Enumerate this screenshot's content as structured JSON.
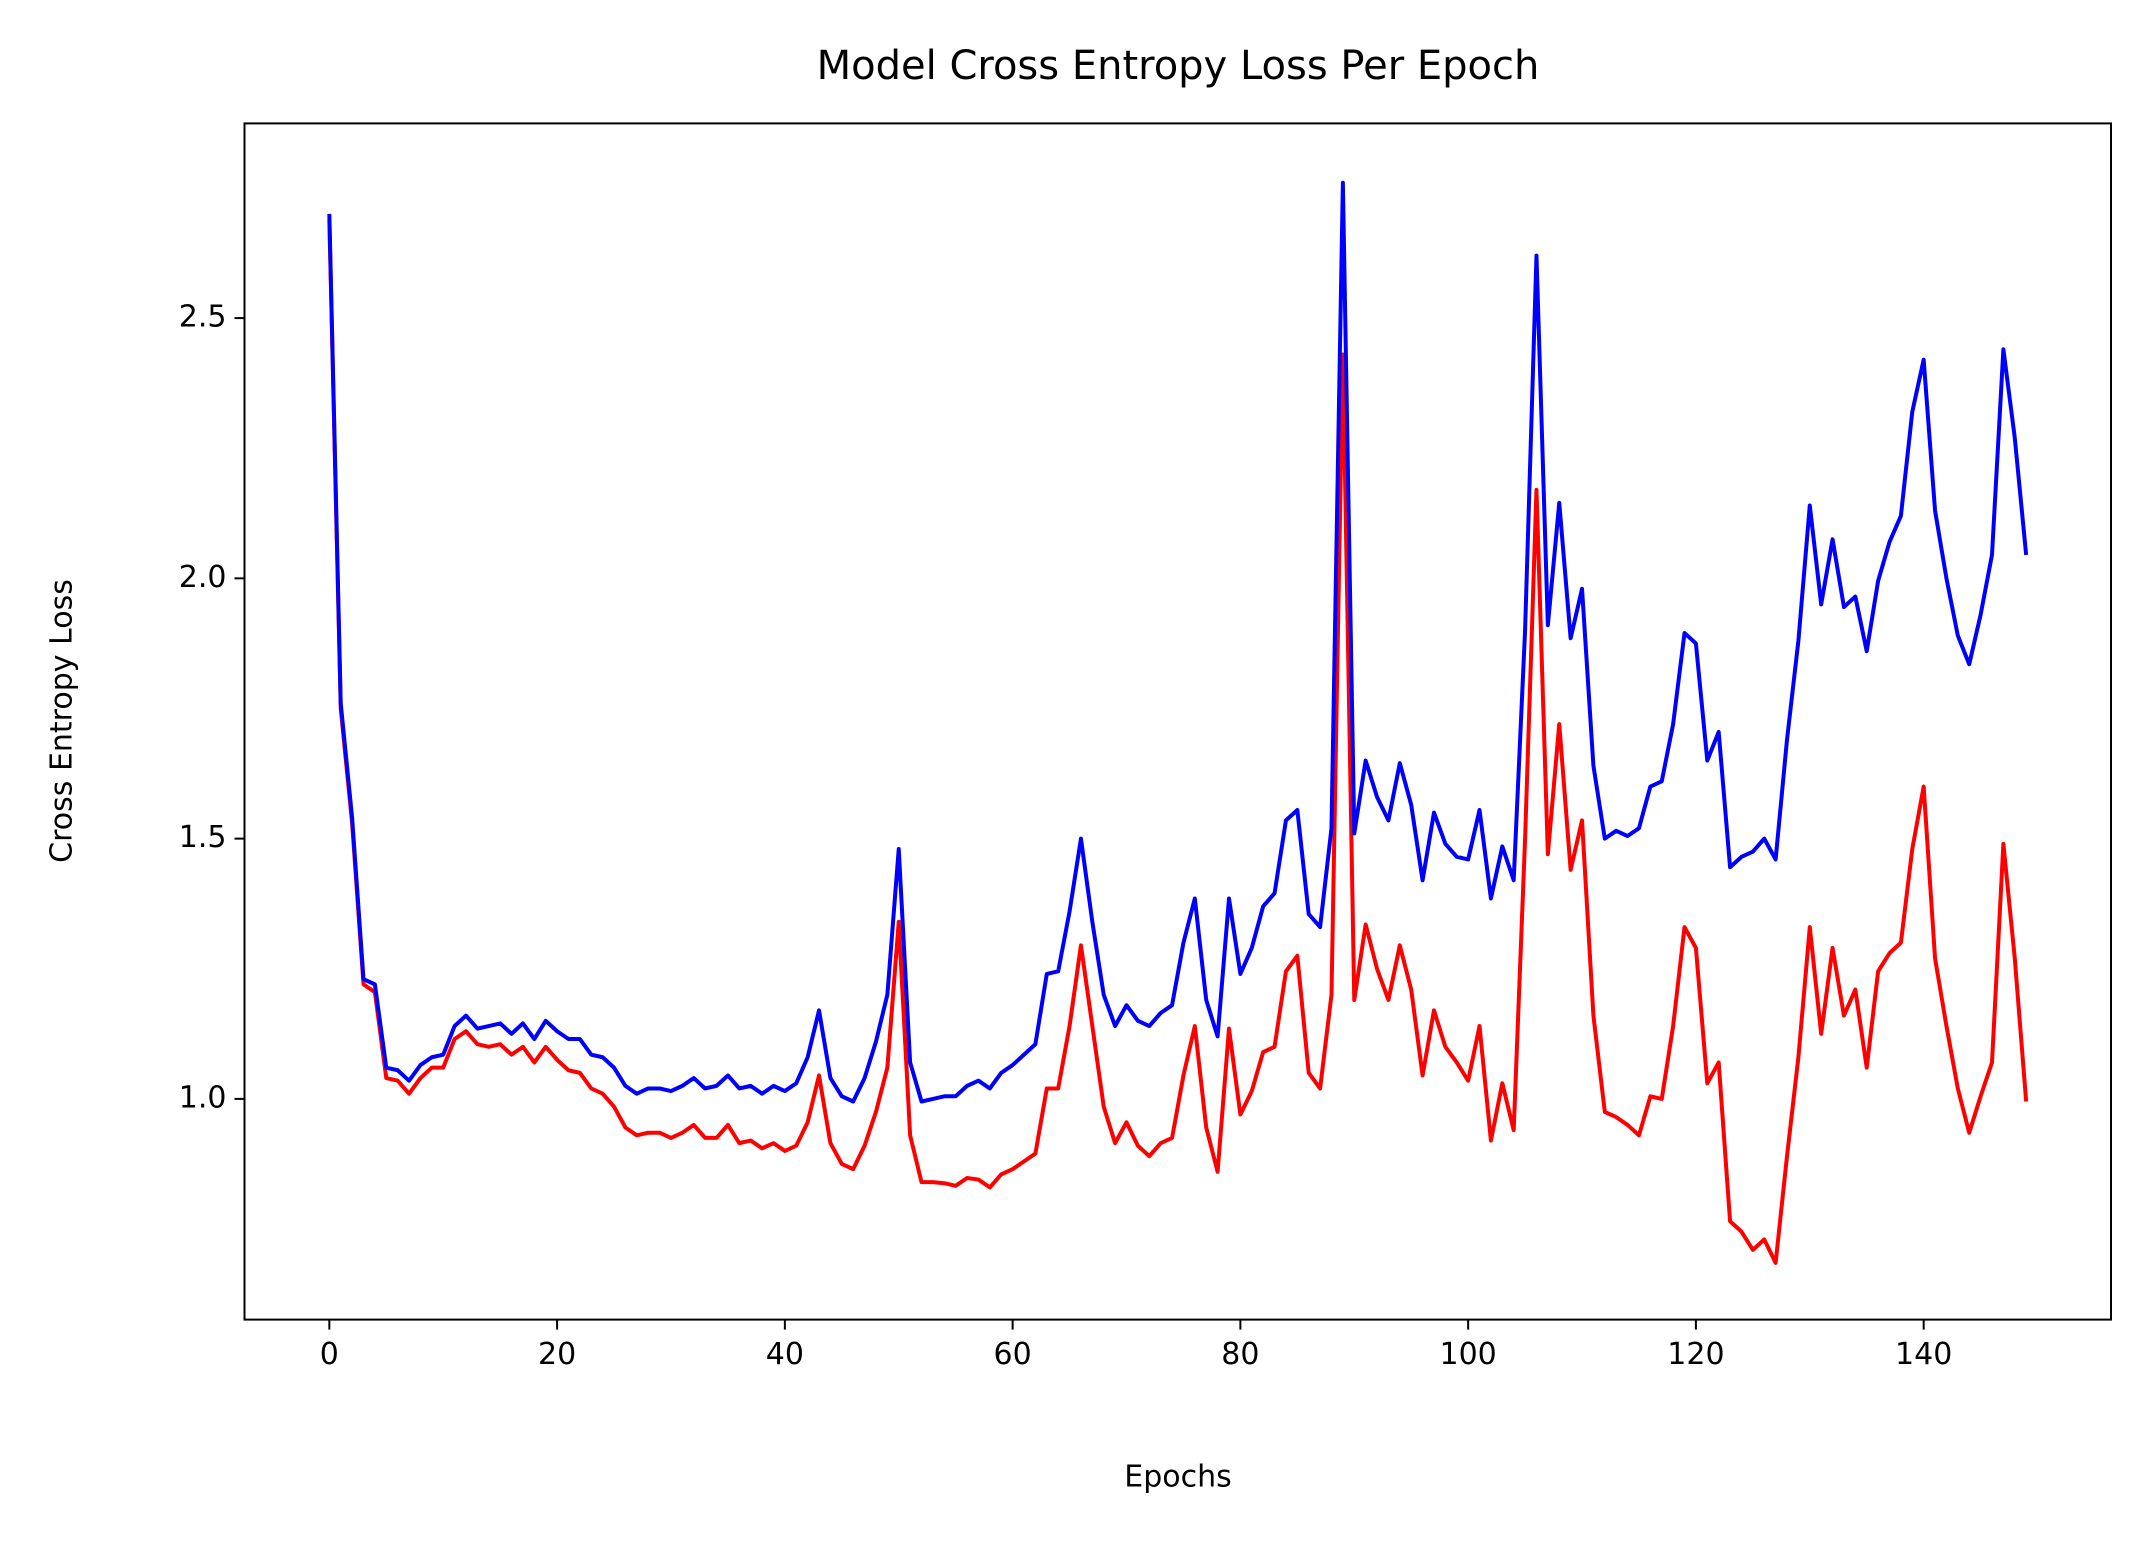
{
  "chart_data": {
    "type": "line",
    "title": "Model Cross Entropy Loss Per Epoch",
    "x_label": "Epochs",
    "y_label": "Cross Entropy Loss",
    "x": [
      0,
      1,
      2,
      3,
      4,
      5,
      6,
      7,
      8,
      9,
      10,
      11,
      12,
      13,
      14,
      15,
      16,
      17,
      18,
      19,
      20,
      21,
      22,
      23,
      24,
      25,
      26,
      27,
      28,
      29,
      30,
      31,
      32,
      33,
      34,
      35,
      36,
      37,
      38,
      39,
      40,
      41,
      42,
      43,
      44,
      45,
      46,
      47,
      48,
      49,
      50,
      51,
      52,
      53,
      54,
      55,
      56,
      57,
      58,
      59,
      60,
      61,
      62,
      63,
      64,
      65,
      66,
      67,
      68,
      69,
      70,
      71,
      72,
      73,
      74,
      75,
      76,
      77,
      78,
      79,
      80,
      81,
      82,
      83,
      84,
      85,
      86,
      87,
      88,
      89,
      90,
      91,
      92,
      93,
      94,
      95,
      96,
      97,
      98,
      99,
      100,
      101,
      102,
      103,
      104,
      105,
      106,
      107,
      108,
      109,
      110,
      111,
      112,
      113,
      114,
      115,
      116,
      117,
      118,
      119,
      120,
      121,
      122,
      123,
      124,
      125,
      126,
      127,
      128,
      129,
      130,
      131,
      132,
      133,
      134,
      135,
      136,
      137,
      138,
      139,
      140,
      141,
      142,
      143,
      144,
      145,
      146,
      147,
      148,
      149
    ],
    "series": [
      {
        "color": "#ff0000",
        "values": [
          2.69,
          1.75,
          1.53,
          1.22,
          1.205,
          1.04,
          1.035,
          1.01,
          1.04,
          1.06,
          1.06,
          1.115,
          1.13,
          1.105,
          1.1,
          1.105,
          1.085,
          1.1,
          1.07,
          1.1,
          1.075,
          1.055,
          1.05,
          1.02,
          1.01,
          0.985,
          0.945,
          0.93,
          0.935,
          0.935,
          0.925,
          0.935,
          0.95,
          0.925,
          0.925,
          0.95,
          0.915,
          0.92,
          0.905,
          0.915,
          0.9,
          0.91,
          0.955,
          1.045,
          0.915,
          0.875,
          0.865,
          0.91,
          0.975,
          1.06,
          1.34,
          0.93,
          0.84,
          0.84,
          0.838,
          0.833,
          0.848,
          0.845,
          0.83,
          0.855,
          0.865,
          0.88,
          0.895,
          1.02,
          1.02,
          1.14,
          1.295,
          1.14,
          0.985,
          0.915,
          0.955,
          0.91,
          0.89,
          0.915,
          0.925,
          1.045,
          1.14,
          0.945,
          0.86,
          1.135,
          0.97,
          1.015,
          1.09,
          1.1,
          1.245,
          1.275,
          1.05,
          1.02,
          1.2,
          2.43,
          1.19,
          1.335,
          1.25,
          1.19,
          1.295,
          1.21,
          1.045,
          1.17,
          1.1,
          1.07,
          1.035,
          1.14,
          0.92,
          1.03,
          0.94,
          1.5,
          2.17,
          1.47,
          1.72,
          1.44,
          1.535,
          1.16,
          0.975,
          0.965,
          0.95,
          0.93,
          1.005,
          1.0,
          1.14,
          1.33,
          1.29,
          1.03,
          1.07,
          0.765,
          0.745,
          0.71,
          0.73,
          0.685,
          0.89,
          1.08,
          1.33,
          1.125,
          1.29,
          1.16,
          1.21,
          1.06,
          1.245,
          1.28,
          1.3,
          1.48,
          1.6,
          1.27,
          1.14,
          1.02,
          0.935,
          1.005,
          1.07,
          1.49,
          1.27,
          0.995
        ]
      },
      {
        "color": "#0000ff",
        "values": [
          2.7,
          1.76,
          1.54,
          1.23,
          1.22,
          1.06,
          1.055,
          1.035,
          1.065,
          1.08,
          1.085,
          1.14,
          1.16,
          1.135,
          1.14,
          1.145,
          1.125,
          1.145,
          1.115,
          1.15,
          1.13,
          1.115,
          1.115,
          1.085,
          1.08,
          1.06,
          1.025,
          1.01,
          1.02,
          1.02,
          1.015,
          1.025,
          1.04,
          1.02,
          1.025,
          1.045,
          1.02,
          1.025,
          1.01,
          1.025,
          1.015,
          1.03,
          1.08,
          1.17,
          1.04,
          1.005,
          0.995,
          1.04,
          1.11,
          1.2,
          1.48,
          1.07,
          0.995,
          1.0,
          1.005,
          1.005,
          1.025,
          1.035,
          1.02,
          1.05,
          1.065,
          1.085,
          1.105,
          1.24,
          1.245,
          1.36,
          1.5,
          1.34,
          1.2,
          1.14,
          1.18,
          1.15,
          1.14,
          1.165,
          1.18,
          1.3,
          1.385,
          1.19,
          1.12,
          1.385,
          1.24,
          1.29,
          1.37,
          1.395,
          1.535,
          1.555,
          1.355,
          1.33,
          1.52,
          2.76,
          1.51,
          1.65,
          1.58,
          1.535,
          1.645,
          1.565,
          1.42,
          1.55,
          1.49,
          1.465,
          1.46,
          1.555,
          1.385,
          1.485,
          1.42,
          1.9,
          2.62,
          1.91,
          2.145,
          1.885,
          1.98,
          1.64,
          1.5,
          1.515,
          1.505,
          1.52,
          1.6,
          1.61,
          1.72,
          1.895,
          1.875,
          1.65,
          1.705,
          1.445,
          1.465,
          1.475,
          1.5,
          1.46,
          1.69,
          1.88,
          2.14,
          1.95,
          2.075,
          1.945,
          1.965,
          1.86,
          1.995,
          2.07,
          2.12,
          2.32,
          2.42,
          2.13,
          2.0,
          1.89,
          1.835,
          1.93,
          2.045,
          2.44,
          2.27,
          2.045
        ]
      }
    ],
    "xlim": [
      -7.45,
      156.45
    ],
    "ylim": [
      0.576,
      2.874
    ],
    "xticks": [
      0,
      20,
      40,
      60,
      80,
      100,
      120,
      140
    ],
    "yticks": [
      {
        "value": 1.0,
        "label": "1.0"
      },
      1.5,
      {
        "value": 2.0,
        "label": "2.0"
      },
      2.5
    ],
    "grid": false
  }
}
